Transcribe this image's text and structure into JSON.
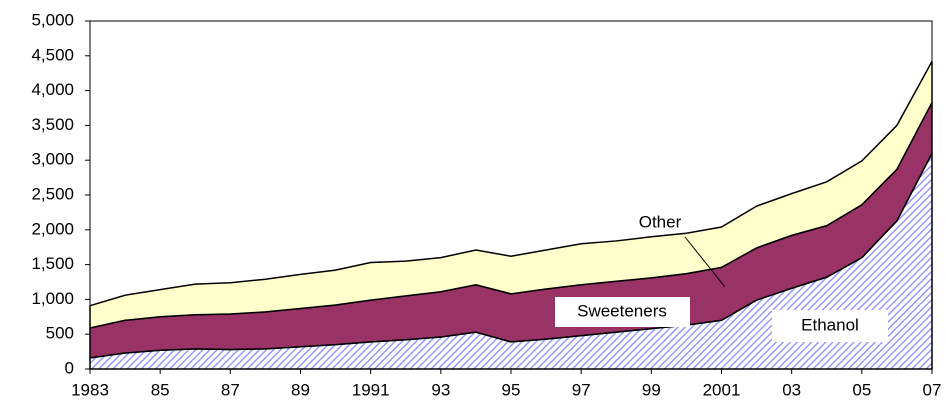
{
  "chart_data": {
    "type": "stacked-area",
    "x": [
      1983,
      1984,
      1985,
      1986,
      1987,
      1988,
      1989,
      1990,
      1991,
      1992,
      1993,
      1994,
      1995,
      1996,
      1997,
      1998,
      1999,
      2000,
      2001,
      2002,
      2003,
      2004,
      2005,
      2006,
      2007
    ],
    "series": [
      {
        "name": "Ethanol",
        "color": "#9999ff",
        "values": [
          160,
          230,
          270,
          290,
          280,
          290,
          320,
          350,
          390,
          420,
          460,
          530,
          390,
          430,
          480,
          530,
          580,
          630,
          700,
          990,
          1160,
          1320,
          1600,
          2130,
          3100
        ]
      },
      {
        "name": "Sweeteners",
        "color": "#993366",
        "values": [
          430,
          470,
          480,
          490,
          510,
          530,
          550,
          570,
          600,
          630,
          650,
          680,
          690,
          720,
          730,
          730,
          730,
          740,
          760,
          750,
          760,
          740,
          760,
          740,
          730
        ]
      },
      {
        "name": "Other",
        "color": "#ffffcc",
        "values": [
          320,
          360,
          390,
          440,
          450,
          470,
          490,
          500,
          540,
          500,
          490,
          500,
          540,
          560,
          590,
          580,
          590,
          580,
          580,
          600,
          600,
          630,
          630,
          630,
          590
        ]
      }
    ],
    "xlim": [
      1983,
      2007
    ],
    "xticks": [
      {
        "value": 1983,
        "label": "1983"
      },
      {
        "value": 1985,
        "label": "85"
      },
      {
        "value": 1987,
        "label": "87"
      },
      {
        "value": 1989,
        "label": "89"
      },
      {
        "value": 1991,
        "label": "1991"
      },
      {
        "value": 1993,
        "label": "93"
      },
      {
        "value": 1995,
        "label": "95"
      },
      {
        "value": 1997,
        "label": "97"
      },
      {
        "value": 1999,
        "label": "99"
      },
      {
        "value": 2001,
        "label": "2001"
      },
      {
        "value": 2003,
        "label": "03"
      },
      {
        "value": 2005,
        "label": "05"
      },
      {
        "value": 2007,
        "label": "07"
      }
    ],
    "ylim": [
      0,
      5000
    ],
    "yticks": [
      0,
      500,
      {
        "value": 1000,
        "label": "1,000"
      },
      {
        "value": 1500,
        "label": "1,500"
      },
      {
        "value": 2000,
        "label": "2,000"
      },
      {
        "value": 2500,
        "label": "2,500"
      },
      {
        "value": 3000,
        "label": "3,000"
      },
      {
        "value": 3500,
        "label": "3,500"
      },
      {
        "value": 4000,
        "label": "4,000"
      },
      {
        "value": 4500,
        "label": "4,500"
      },
      {
        "value": 5000,
        "label": "5,000"
      }
    ],
    "grid": false
  }
}
